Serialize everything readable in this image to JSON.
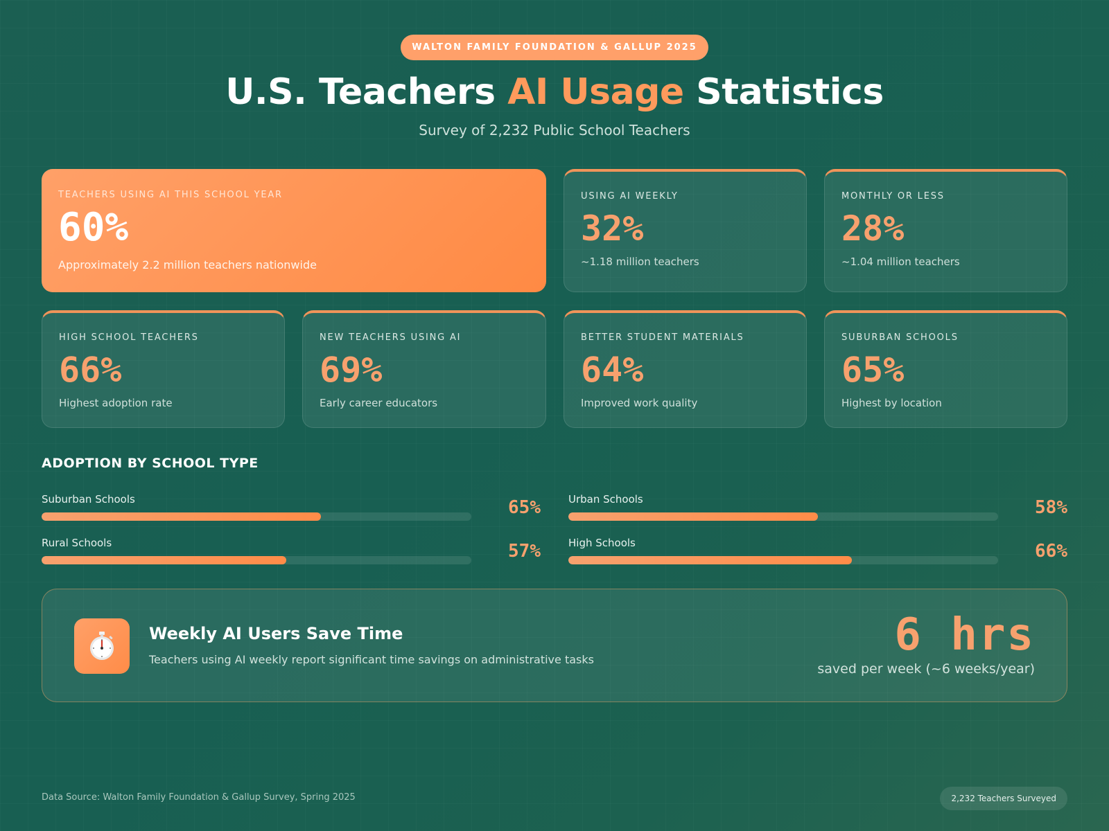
{
  "header": {
    "pill": "WALTON FAMILY FOUNDATION & GALLUP 2025",
    "title_part1": "U.S. Teachers ",
    "title_accent": "AI Usage",
    "title_part2": " Statistics",
    "subtitle": "Survey of 2,232 Public School Teachers"
  },
  "stats": {
    "hero": {
      "label": "TEACHERS USING AI THIS SCHOOL YEAR",
      "value": "60%",
      "sub": "Approximately 2.2 million teachers nationwide"
    },
    "weekly": {
      "label": "USING AI WEEKLY",
      "value": "32%",
      "sub": "~1.18 million teachers"
    },
    "monthly": {
      "label": "MONTHLY OR LESS",
      "value": "28%",
      "sub": "~1.04 million teachers"
    },
    "high_school": {
      "label": "HIGH SCHOOL TEACHERS",
      "value": "66%",
      "sub": "Highest adoption rate"
    },
    "new_teachers": {
      "label": "NEW TEACHERS USING AI",
      "value": "69%",
      "sub": "Early career educators"
    },
    "materials": {
      "label": "BETTER STUDENT MATERIALS",
      "value": "64%",
      "sub": "Improved work quality"
    },
    "suburban": {
      "label": "SUBURBAN SCHOOLS",
      "value": "65%",
      "sub": "Highest by location"
    }
  },
  "adoption": {
    "title": "ADOPTION BY SCHOOL TYPE",
    "rows": [
      {
        "name": "Suburban Schools",
        "pct_label": "65%",
        "value": 65
      },
      {
        "name": "Urban Schools",
        "pct_label": "58%",
        "value": 58
      },
      {
        "name": "Rural Schools",
        "pct_label": "57%",
        "value": 57
      },
      {
        "name": "High Schools",
        "pct_label": "66%",
        "value": 66
      }
    ]
  },
  "savings": {
    "icon": "stopwatch-icon",
    "title": "Weekly AI Users Save Time",
    "desc": "Teachers using AI weekly report significant time savings on administrative tasks",
    "value": "6 hrs",
    "value_sub": "saved per week (~6 weeks/year)"
  },
  "footer": {
    "source": "Data Source: Walton Family Foundation & Gallup Survey, Spring 2025",
    "badge": "2,232 Teachers Surveyed"
  },
  "colors": {
    "accent": "#ff9a5c",
    "background": "#185f52"
  }
}
